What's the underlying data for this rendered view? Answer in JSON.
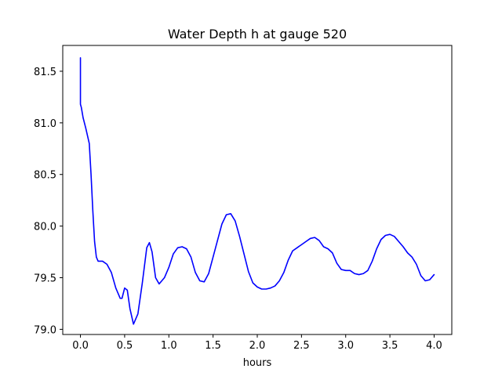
{
  "chart_data": {
    "type": "line",
    "title": "Water Depth h at gauge 520",
    "xlabel": "hours",
    "ylabel": "",
    "xlim": [
      -0.2,
      4.2
    ],
    "ylim": [
      78.95,
      81.75
    ],
    "xticks": [
      0.0,
      0.5,
      1.0,
      1.5,
      2.0,
      2.5,
      3.0,
      3.5,
      4.0
    ],
    "xtick_labels": [
      "0.0",
      "0.5",
      "1.0",
      "1.5",
      "2.0",
      "2.5",
      "3.0",
      "3.5",
      "4.0"
    ],
    "yticks": [
      79.0,
      79.5,
      80.0,
      80.5,
      81.0,
      81.5
    ],
    "ytick_labels": [
      "79.0",
      "79.5",
      "80.0",
      "80.5",
      "81.0",
      "81.5"
    ],
    "grid": false,
    "series": [
      {
        "color": "#0000ff",
        "x": [
          0.0,
          0.0,
          0.01,
          0.03,
          0.06,
          0.1,
          0.12,
          0.14,
          0.16,
          0.18,
          0.2,
          0.25,
          0.3,
          0.35,
          0.4,
          0.45,
          0.47,
          0.5,
          0.53,
          0.56,
          0.6,
          0.65,
          0.7,
          0.75,
          0.78,
          0.81,
          0.85,
          0.89,
          0.92,
          0.95,
          1.0,
          1.05,
          1.1,
          1.15,
          1.2,
          1.25,
          1.3,
          1.35,
          1.4,
          1.45,
          1.5,
          1.55,
          1.6,
          1.65,
          1.7,
          1.75,
          1.8,
          1.85,
          1.9,
          1.95,
          2.0,
          2.05,
          2.1,
          2.15,
          2.2,
          2.25,
          2.3,
          2.35,
          2.4,
          2.45,
          2.5,
          2.55,
          2.6,
          2.65,
          2.7,
          2.75,
          2.8,
          2.85,
          2.9,
          2.95,
          3.0,
          3.05,
          3.1,
          3.15,
          3.2,
          3.25,
          3.3,
          3.35,
          3.4,
          3.45,
          3.5,
          3.55,
          3.6,
          3.65,
          3.7,
          3.75,
          3.8,
          3.85,
          3.9,
          3.95,
          4.0
        ],
        "y": [
          81.63,
          81.18,
          81.15,
          81.05,
          80.95,
          80.8,
          80.5,
          80.15,
          79.85,
          79.7,
          79.66,
          79.66,
          79.63,
          79.55,
          79.4,
          79.3,
          79.3,
          79.4,
          79.38,
          79.2,
          79.05,
          79.15,
          79.45,
          79.79,
          79.84,
          79.75,
          79.5,
          79.44,
          79.47,
          79.5,
          79.6,
          79.73,
          79.79,
          79.8,
          79.78,
          79.7,
          79.55,
          79.47,
          79.46,
          79.54,
          79.7,
          79.86,
          80.02,
          80.11,
          80.12,
          80.05,
          79.9,
          79.73,
          79.56,
          79.45,
          79.41,
          79.39,
          79.39,
          79.4,
          79.42,
          79.47,
          79.55,
          79.67,
          79.76,
          79.79,
          79.82,
          79.85,
          79.88,
          79.89,
          79.86,
          79.8,
          79.78,
          79.74,
          79.64,
          79.58,
          79.57,
          79.57,
          79.54,
          79.53,
          79.54,
          79.57,
          79.66,
          79.78,
          79.87,
          79.91,
          79.92,
          79.9,
          79.85,
          79.8,
          79.74,
          79.7,
          79.63,
          79.52,
          79.47,
          79.48,
          79.53
        ]
      }
    ]
  }
}
